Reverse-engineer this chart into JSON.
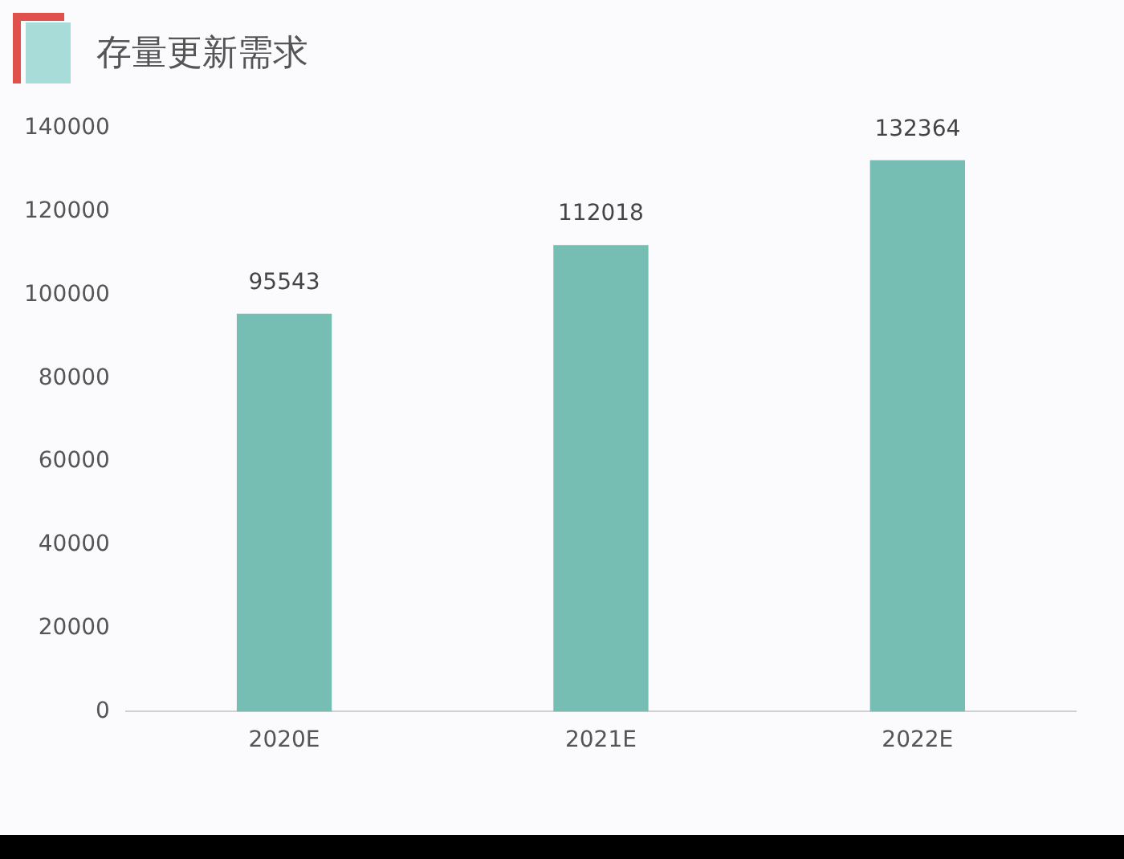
{
  "chart_data": {
    "type": "bar",
    "title": "存量更新需求",
    "categories": [
      "2020E",
      "2021E",
      "2022E"
    ],
    "values": [
      95543,
      112018,
      132364
    ],
    "color": "#76bdb4",
    "ylim": [
      0,
      140000
    ],
    "yticks": [
      0,
      20000,
      40000,
      60000,
      80000,
      100000,
      120000,
      140000
    ],
    "grid": false,
    "legend": false,
    "data_labels": true
  }
}
